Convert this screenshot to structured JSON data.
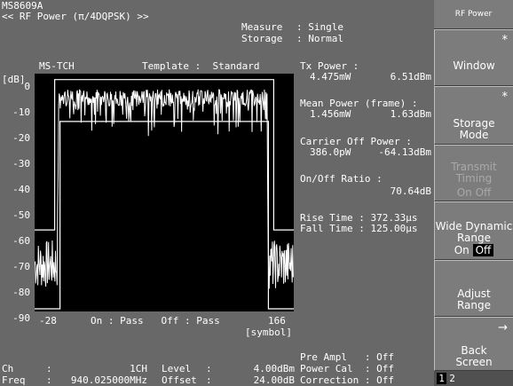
{
  "header": {
    "model": "MS8609A",
    "title": "<< RF Power (π/4DQPSK) >>",
    "measure_label": "Measure",
    "measure_value": ": Single",
    "storage_label": "Storage",
    "storage_value": ": Normal"
  },
  "graph": {
    "unit": "[dB]",
    "mode": "MS-TCH",
    "template": "Template :  Standard",
    "y_ticks": [
      "0",
      "-10",
      "-20",
      "-30",
      "-40",
      "-50",
      "-60",
      "-70",
      "-80",
      "-90"
    ],
    "x_start": "-28",
    "x_end": "166",
    "x_unit": "[symbol]",
    "judgement": "On : Pass   Off : Pass"
  },
  "chart_data": {
    "type": "line",
    "xlim": [
      -28,
      166
    ],
    "ylim": [
      -90,
      0
    ],
    "xlabel": "[symbol]",
    "ylabel": "[dB]",
    "template_upper": {
      "x": [
        -28,
        -13,
        -13,
        151,
        151,
        166
      ],
      "y": [
        -58,
        -58,
        3,
        3,
        -58,
        -58
      ]
    },
    "template_lower": {
      "x": [
        -28,
        -9,
        -9,
        147,
        147,
        166
      ],
      "y": [
        -90,
        -90,
        -14,
        -14,
        -90,
        -90
      ]
    },
    "series": [
      {
        "x": [
          -28,
          -11,
          -10,
          146,
          147,
          166
        ],
        "y": [
          -72,
          -72,
          -1,
          -1,
          -72,
          -72
        ]
      }
    ]
  },
  "results": {
    "tx_power_label": "Tx Power :",
    "tx_power_mw": "4.475mW",
    "tx_power_dbm": "6.51dBm",
    "mean_power_label": "Mean Power (frame) :",
    "mean_power_mw": "1.456mW",
    "mean_power_dbm": "1.63dBm",
    "carrier_off_label": "Carrier Off Power :",
    "carrier_off_uw": "386.0pW",
    "carrier_off_dbm": "-64.13dBm",
    "onoff_label": "On/Off Ratio :",
    "onoff_value": "70.64dB",
    "rise_time": "Rise Time : 372.33μs",
    "fall_time": "Fall Time : 125.00μs"
  },
  "footer": {
    "ch_label": "Ch",
    "ch_colon": ":",
    "ch_value": "1CH",
    "freq_label": "Freq",
    "freq_colon": ":",
    "freq_value": "940.025000MHz",
    "level_label": "Level",
    "level_colon": ":",
    "level_value": "4.00dBm",
    "offset_label": "Offset",
    "offset_colon": ":",
    "offset_value": "24.00dB",
    "pre_ampl": "Pre Ampl   : Off",
    "power_cal": "Power Cal  : Off",
    "correction": "Correction : Off"
  },
  "softkeys": {
    "header": "RF Power",
    "window": "Window",
    "storage_mode": "Storage\nMode",
    "transmit_timing": "Transmit\nTiming",
    "transmit_on": "On",
    "transmit_off": "Off",
    "wide_dynamic": "Wide Dynamic\nRange",
    "wide_on": "On",
    "wide_off": "Off",
    "adjust_range": "Adjust\nRange",
    "back_screen": "Back\nScreen",
    "star": "*",
    "arrow": "→",
    "page1": "1",
    "page2": "2"
  }
}
